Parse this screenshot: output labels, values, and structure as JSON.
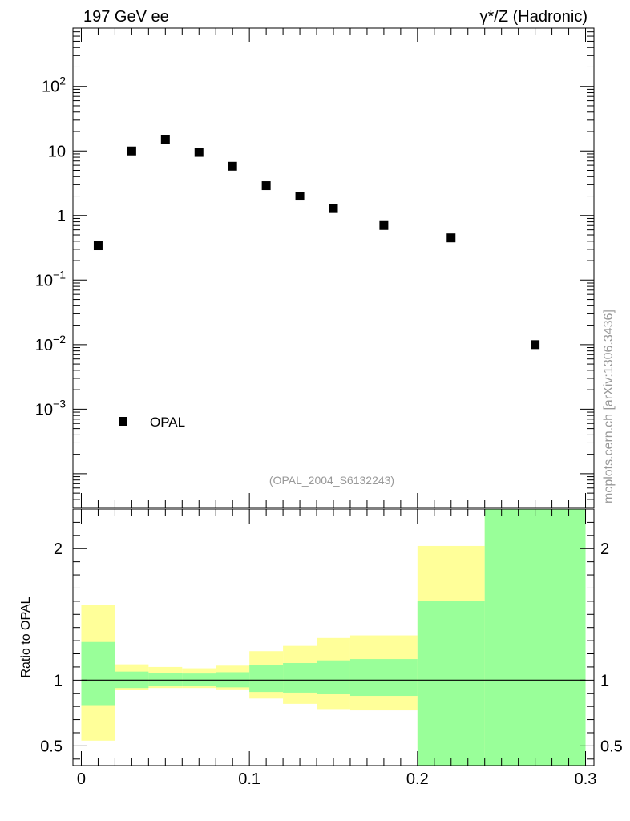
{
  "header": {
    "left_title": "197 GeV ee",
    "right_title": "γ*/Z (Hadronic)"
  },
  "watermark": "mcplots.cern.ch [arXiv:1306.3436]",
  "analysis_id": "(OPAL_2004_S6132243)",
  "colors": {
    "green_band": "#99ff99",
    "yellow_band": "#ffff99",
    "marker": "#000000"
  },
  "chart_data": [
    {
      "type": "scatter",
      "name": "main-panel",
      "yscale": "log",
      "ylim": [
        3e-05,
        800
      ],
      "xlim": [
        -0.005,
        0.305
      ],
      "legend": {
        "entries": [
          "OPAL"
        ],
        "placement": "bottom-left"
      },
      "y_tick_labels": [
        "10^-3",
        "10^-2",
        "10^-1",
        "1",
        "10",
        "10^2"
      ],
      "series": [
        {
          "name": "OPAL",
          "x": [
            0.01,
            0.03,
            0.05,
            0.07,
            0.09,
            0.11,
            0.13,
            0.15,
            0.18,
            0.22,
            0.27
          ],
          "y": [
            0.34,
            10.0,
            15.0,
            9.5,
            5.8,
            2.9,
            2.0,
            1.28,
            0.7,
            0.45,
            0.01
          ]
        }
      ]
    },
    {
      "type": "area",
      "name": "ratio-panel",
      "ylabel": "Ratio to OPAL",
      "xlim": [
        -0.005,
        0.305
      ],
      "ylim": [
        0.35,
        2.3
      ],
      "x_tick_labels": [
        "0",
        "0.1",
        "0.2",
        "0.3"
      ],
      "y_tick_labels": [
        "0.5",
        "1",
        "2"
      ],
      "bin_edges": [
        0,
        0.02,
        0.04,
        0.06,
        0.08,
        0.1,
        0.12,
        0.14,
        0.16,
        0.2,
        0.24,
        0.3
      ],
      "green_band": {
        "low": [
          0.81,
          0.94,
          0.955,
          0.955,
          0.945,
          0.91,
          0.905,
          0.895,
          0.88,
          0.35,
          0.35
        ],
        "high": [
          1.29,
          1.065,
          1.055,
          1.05,
          1.06,
          1.115,
          1.13,
          1.15,
          1.16,
          1.6,
          2.3
        ]
      },
      "yellow_band": {
        "low": [
          0.54,
          0.925,
          0.94,
          0.94,
          0.93,
          0.86,
          0.82,
          0.78,
          0.77,
          0.48,
          0.35
        ],
        "high": [
          1.57,
          1.12,
          1.1,
          1.09,
          1.11,
          1.22,
          1.26,
          1.32,
          1.34,
          2.02,
          2.3
        ]
      },
      "reference_line": 1
    }
  ]
}
